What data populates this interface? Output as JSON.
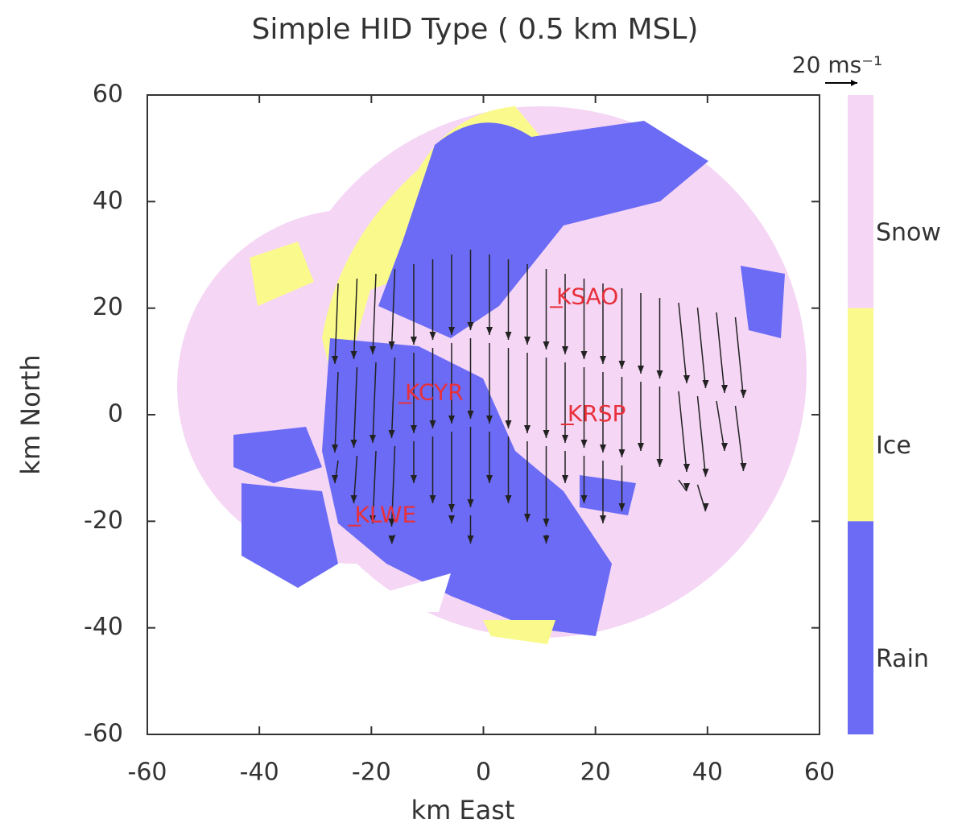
{
  "chart_data": {
    "type": "map",
    "title": "Simple HID Type (  0.5 km MSL)",
    "xlabel": "km East",
    "ylabel": "km North",
    "xlim": [
      -60,
      60
    ],
    "ylim": [
      -60,
      60
    ],
    "xticks": [
      -60,
      -40,
      -20,
      0,
      20,
      40,
      60
    ],
    "yticks": [
      -60,
      -40,
      -20,
      0,
      20,
      40,
      60
    ],
    "stations": [
      {
        "name": "KSAO",
        "x": 13,
        "y": 22
      },
      {
        "name": "KCYR",
        "x": -14,
        "y": 4
      },
      {
        "name": "KRSP",
        "x": 15,
        "y": 0
      },
      {
        "name": "KLWE",
        "x": -23,
        "y": -19
      }
    ],
    "station_color": "#e8303a",
    "legend": [
      {
        "name": "Snow",
        "color": "#f5d6f5"
      },
      {
        "name": "Ice",
        "color": "#fafa8c"
      },
      {
        "name": "Rain",
        "color": "#6b6bf5"
      }
    ],
    "reference_vector_label": "20 ms⁻¹"
  }
}
